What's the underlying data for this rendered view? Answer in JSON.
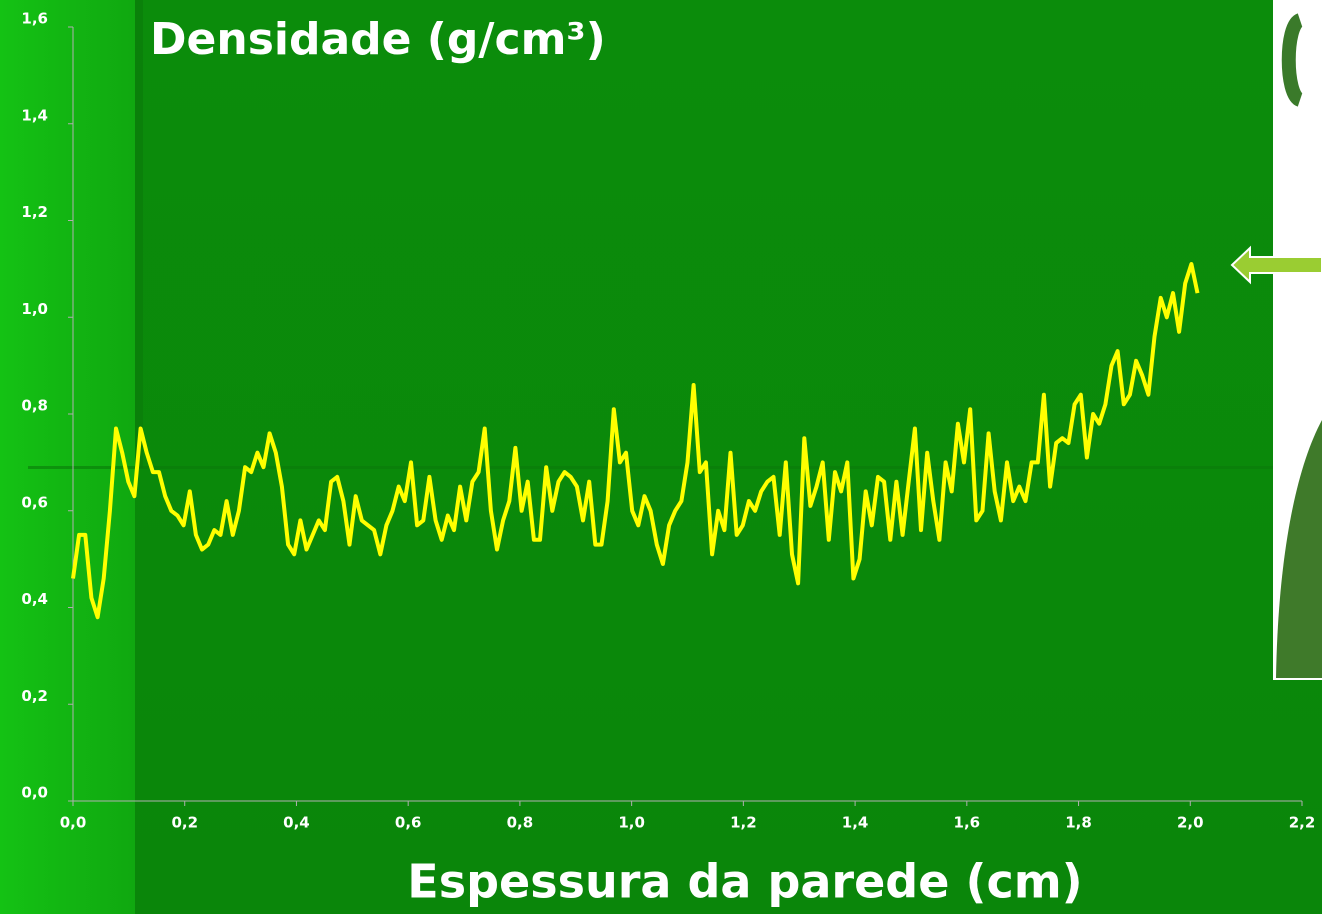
{
  "chart_data": {
    "type": "line",
    "title": "Densidade (g/cm³)",
    "x_label": "Espessura da parede (cm)",
    "xlim": [
      0,
      2.2
    ],
    "ylim": [
      0,
      1.6
    ],
    "xticks": [
      {
        "value": 0,
        "label": "0,0"
      },
      {
        "value": 0.2,
        "label": "0,2"
      },
      {
        "value": 0.4,
        "label": "0,4"
      },
      {
        "value": 0.6,
        "label": "0,6"
      },
      {
        "value": 0.8,
        "label": "0,8"
      },
      {
        "value": 1.0,
        "label": "1,0"
      },
      {
        "value": 1.2,
        "label": "1,2"
      },
      {
        "value": 1.4,
        "label": "1,4"
      },
      {
        "value": 1.6,
        "label": "1,6"
      },
      {
        "value": 1.8,
        "label": "1,8"
      },
      {
        "value": 2.0,
        "label": "2,0"
      },
      {
        "value": 2.2,
        "label": "2,2"
      }
    ],
    "yticks": [
      {
        "value": 0,
        "label": "0,0"
      },
      {
        "value": 0.2,
        "label": "0,2"
      },
      {
        "value": 0.4,
        "label": "0,4"
      },
      {
        "value": 0.6,
        "label": "0,6"
      },
      {
        "value": 0.8,
        "label": "0,8"
      },
      {
        "value": 1.0,
        "label": "1,0"
      },
      {
        "value": 1.2,
        "label": "1,2"
      },
      {
        "value": 1.4,
        "label": "1,4"
      },
      {
        "value": 1.6,
        "label": "1,6"
      }
    ],
    "color": "#ffff00",
    "x": [
      0,
      0.011,
      0.022,
      0.033,
      0.044,
      0.055,
      0.066,
      0.077,
      0.088,
      0.099,
      0.11,
      0.121,
      0.132,
      0.143,
      0.154,
      0.165,
      0.176,
      0.187,
      0.198,
      0.209,
      0.22,
      0.231,
      0.242,
      0.253,
      0.264,
      0.275,
      0.286,
      0.297,
      0.308,
      0.319,
      0.33,
      0.341,
      0.352,
      0.363,
      0.374,
      0.385,
      0.396,
      0.407,
      0.418,
      0.429,
      0.44,
      0.451,
      0.462,
      0.473,
      0.484,
      0.495,
      0.506,
      0.517,
      0.528,
      0.539,
      0.55,
      0.561,
      0.572,
      0.583,
      0.594,
      0.605,
      0.616,
      0.627,
      0.638,
      0.649,
      0.66,
      0.671,
      0.682,
      0.693,
      0.704,
      0.715,
      0.726,
      0.737,
      0.748,
      0.759,
      0.77,
      0.781,
      0.792,
      0.803,
      0.814,
      0.825,
      0.836,
      0.847,
      0.858,
      0.869,
      0.88,
      0.891,
      0.902,
      0.913,
      0.924,
      0.935,
      0.946,
      0.957,
      0.968,
      0.979,
      0.99,
      1.001,
      1.012,
      1.023,
      1.034,
      1.045,
      1.056,
      1.067,
      1.078,
      1.089,
      1.1,
      1.111,
      1.122,
      1.133,
      1.144,
      1.155,
      1.166,
      1.177,
      1.188,
      1.199,
      1.21,
      1.221,
      1.232,
      1.243,
      1.254,
      1.265,
      1.276,
      1.287,
      1.298,
      1.309,
      1.32,
      1.331,
      1.342,
      1.353,
      1.364,
      1.375,
      1.386,
      1.397,
      1.408,
      1.419,
      1.43,
      1.441,
      1.452,
      1.463,
      1.474,
      1.485,
      1.496,
      1.507,
      1.518,
      1.529,
      1.54,
      1.551,
      1.562,
      1.573,
      1.584,
      1.595,
      1.606,
      1.617,
      1.628,
      1.639,
      1.65,
      1.661,
      1.672,
      1.683,
      1.694,
      1.705,
      1.716,
      1.727,
      1.738,
      1.749,
      1.76,
      1.771,
      1.782,
      1.793,
      1.804,
      1.815,
      1.826,
      1.837,
      1.848,
      1.859,
      1.87,
      1.881,
      1.892,
      1.903,
      1.914,
      1.925,
      1.936,
      1.947,
      1.958,
      1.969,
      1.98,
      1.991,
      2.002,
      2.013
    ],
    "values": [
      0.46,
      0.55,
      0.55,
      0.42,
      0.38,
      0.46,
      0.6,
      0.77,
      0.72,
      0.66,
      0.63,
      0.77,
      0.72,
      0.68,
      0.68,
      0.63,
      0.6,
      0.59,
      0.57,
      0.64,
      0.55,
      0.52,
      0.53,
      0.56,
      0.55,
      0.62,
      0.55,
      0.6,
      0.69,
      0.68,
      0.72,
      0.69,
      0.76,
      0.72,
      0.65,
      0.53,
      0.51,
      0.58,
      0.52,
      0.55,
      0.58,
      0.56,
      0.66,
      0.67,
      0.62,
      0.53,
      0.63,
      0.58,
      0.57,
      0.56,
      0.51,
      0.57,
      0.6,
      0.65,
      0.62,
      0.7,
      0.57,
      0.58,
      0.67,
      0.58,
      0.54,
      0.59,
      0.56,
      0.65,
      0.58,
      0.66,
      0.68,
      0.77,
      0.6,
      0.52,
      0.58,
      0.62,
      0.73,
      0.6,
      0.66,
      0.54,
      0.54,
      0.69,
      0.6,
      0.66,
      0.68,
      0.67,
      0.65,
      0.58,
      0.66,
      0.53,
      0.53,
      0.62,
      0.81,
      0.7,
      0.72,
      0.6,
      0.57,
      0.63,
      0.6,
      0.53,
      0.49,
      0.57,
      0.6,
      0.62,
      0.7,
      0.86,
      0.68,
      0.7,
      0.51,
      0.6,
      0.56,
      0.72,
      0.55,
      0.57,
      0.62,
      0.6,
      0.64,
      0.66,
      0.67,
      0.55,
      0.7,
      0.51,
      0.45,
      0.75,
      0.61,
      0.65,
      0.7,
      0.54,
      0.68,
      0.64,
      0.7,
      0.46,
      0.5,
      0.64,
      0.57,
      0.67,
      0.66,
      0.54,
      0.66,
      0.55,
      0.66,
      0.77,
      0.56,
      0.72,
      0.62,
      0.54,
      0.7,
      0.64,
      0.78,
      0.7,
      0.81,
      0.58,
      0.6,
      0.76,
      0.64,
      0.58,
      0.7,
      0.62,
      0.65,
      0.62,
      0.7,
      0.7,
      0.84,
      0.65,
      0.74,
      0.75,
      0.74,
      0.82,
      0.84,
      0.71,
      0.8,
      0.78,
      0.82,
      0.9,
      0.93,
      0.82,
      0.84,
      0.91,
      0.88,
      0.84,
      0.96,
      1.04,
      1.0,
      1.05,
      0.97,
      1.07,
      1.11,
      1.05
    ]
  }
}
